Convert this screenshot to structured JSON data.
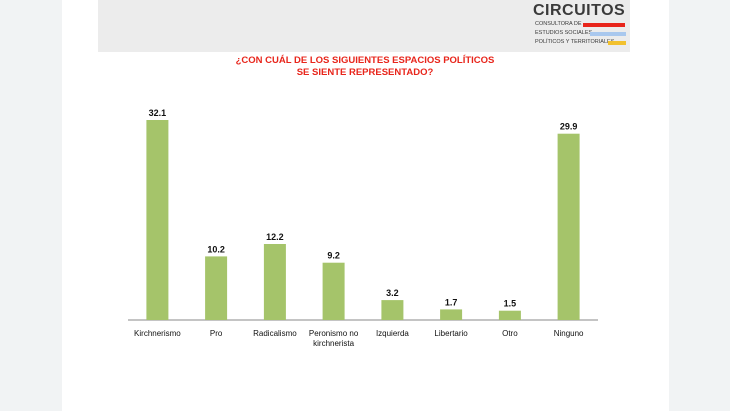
{
  "logo": {
    "name": "CIRCUITOS",
    "line1": "CONSULTORA DE",
    "line2": "ESTUDIOS SOCIALES,",
    "line3": "POLÍTICOS Y TERRITORIALES",
    "stripe_colors": [
      "#e8251b",
      "#a9c8ee",
      "#f2c12e"
    ]
  },
  "chart_data": {
    "type": "bar",
    "title_line1": "¿CON CUÁL DE LOS SIGUIENTES ESPACIOS POLÍTICOS",
    "title_line2": "SE SIENTE REPRESENTADO?",
    "categories": [
      "Kirchnerismo",
      "Pro",
      "Radicalismo",
      "Peronismo no kirchnerista",
      "Izquierda",
      "Libertario",
      "Otro",
      "Ninguno"
    ],
    "category_lines": [
      [
        "Kirchnerismo"
      ],
      [
        "Pro"
      ],
      [
        "Radicalismo"
      ],
      [
        "Peronismo no",
        "kirchnerista"
      ],
      [
        "Izquierda"
      ],
      [
        "Libertario"
      ],
      [
        "Otro"
      ],
      [
        "Ninguno"
      ]
    ],
    "values": [
      32.1,
      10.2,
      12.2,
      9.2,
      3.2,
      1.7,
      1.5,
      29.9
    ],
    "labels": [
      "32.1",
      "10.2",
      "12.2",
      "9.2",
      "3.2",
      "1.7",
      "1.5",
      "29.9"
    ],
    "bar_color": "#a5c46a",
    "title_color": "#e8251b",
    "ylim": [
      0,
      32.1
    ],
    "grid": false,
    "legend": "none"
  }
}
